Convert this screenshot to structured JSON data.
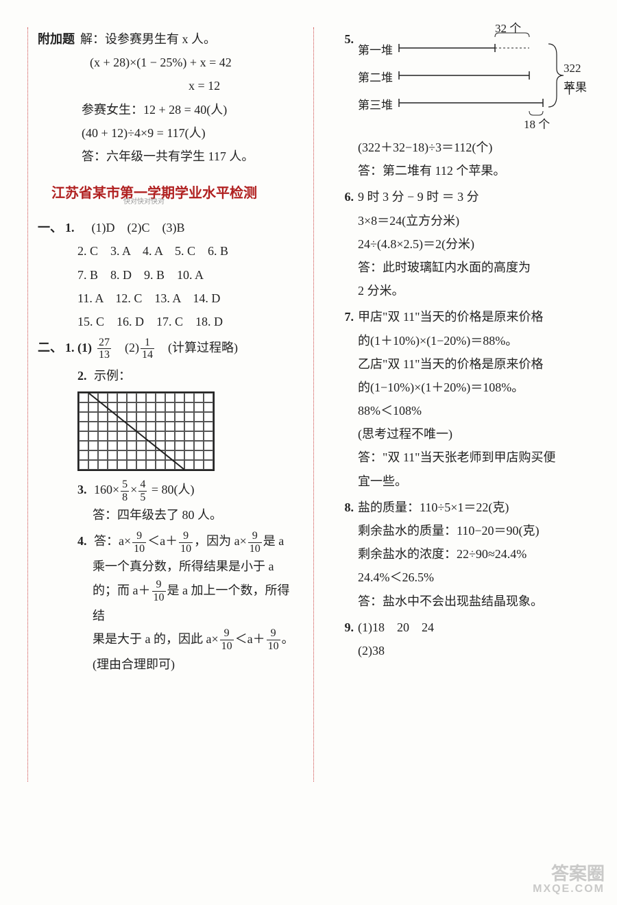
{
  "bonus": {
    "label": "附加题",
    "line1": "解：设参赛男生有 x 人。",
    "line2": "(x + 28)×(1 − 25%) + x = 42",
    "line3": "x = 12",
    "line4": "参赛女生：12 + 28 = 40(人)",
    "line5": "(40 + 12)÷4×9 = 117(人)",
    "line6": "答：六年级一共有学生 117 人。"
  },
  "title": "江苏省某市第一学期学业水平检测",
  "section1": {
    "label": "一、",
    "q1": {
      "n": "1.",
      "a": "(1)D　(2)C　(3)B"
    },
    "row2": "2. C　3. A　4. A　5. C　6. B",
    "row3": "7. B　8. D　9. B　10. A",
    "row4": "11. A　12. C　13. A　14. D",
    "row5": "15. C　16. D　17. C　18. D"
  },
  "section2": {
    "label": "二、",
    "q1pre": "1. (1)",
    "q1f1n": "27",
    "q1f1d": "13",
    "q1mid": "　(2)",
    "q1f2n": "1",
    "q1f2d": "14",
    "q1post": "　(计算过程略)",
    "q2": {
      "n": "2.",
      "t": "示例："
    },
    "q3": {
      "n": "3.",
      "pre": "160×",
      "f1n": "5",
      "f1d": "8",
      "mid": "×",
      "f2n": "4",
      "f2d": "5",
      "post": " = 80(人)",
      "ans": "答：四年级去了 80 人。"
    },
    "q4": {
      "n": "4.",
      "p1a": "答：a×",
      "p1b": "＜a＋",
      "p1c": "，因为 a×",
      "p1d": "是 a",
      "fn": "9",
      "fd": "10",
      "p2": "乘一个真分数，所得结果是小于 a",
      "p3a": "的；而 a＋",
      "p3b": "是 a 加上一个数，所得结",
      "p4a": "果是大于 a 的，因此 a×",
      "p4b": "＜a＋",
      "p4c": "。",
      "p5": "(理由合理即可)"
    }
  },
  "right": {
    "q5": {
      "n": "5.",
      "topLabel": "32 个",
      "pile1": "第一堆",
      "pile2": "第二堆",
      "pile3": "第三堆",
      "rightLabel1": "322 个",
      "rightLabel2": "苹果",
      "bottomLabel": "18 个",
      "calc": "(322＋32−18)÷3＝112(个)",
      "ans": "答：第二堆有 112 个苹果。"
    },
    "q6": {
      "n": "6.",
      "l1": "9 时 3 分 − 9 时 ＝ 3 分",
      "l2": "3×8＝24(立方分米)",
      "l3": "24÷(4.8×2.5)＝2(分米)",
      "l4": "答：此时玻璃缸内水面的高度为",
      "l5": "2 分米。"
    },
    "q7": {
      "n": "7.",
      "l1": "甲店\"双 11\"当天的价格是原来价格",
      "l2": "的(1＋10%)×(1−20%)＝88%。",
      "l3": "乙店\"双 11\"当天的价格是原来价格",
      "l4": "的(1−10%)×(1＋20%)＝108%。",
      "l5": "88%＜108%",
      "l6": "(思考过程不唯一)",
      "l7": "答：\"双 11\"当天张老师到甲店购买便",
      "l8": "宜一些。"
    },
    "q8": {
      "n": "8.",
      "l1": "盐的质量：110÷5×1＝22(克)",
      "l2": "剩余盐水的质量：110−20＝90(克)",
      "l3": "剩余盐水的浓度：22÷90≈24.4%",
      "l4": "24.4%＜26.5%",
      "l5": "答：盐水中不会出现盐结晶现象。"
    },
    "q9": {
      "n": "9.",
      "l1": "(1)18　20　24",
      "l2": "(2)38"
    }
  },
  "watermark": {
    "main": "答案圈",
    "sub": "MXQE.COM"
  },
  "smallwm": "快对快对快对"
}
